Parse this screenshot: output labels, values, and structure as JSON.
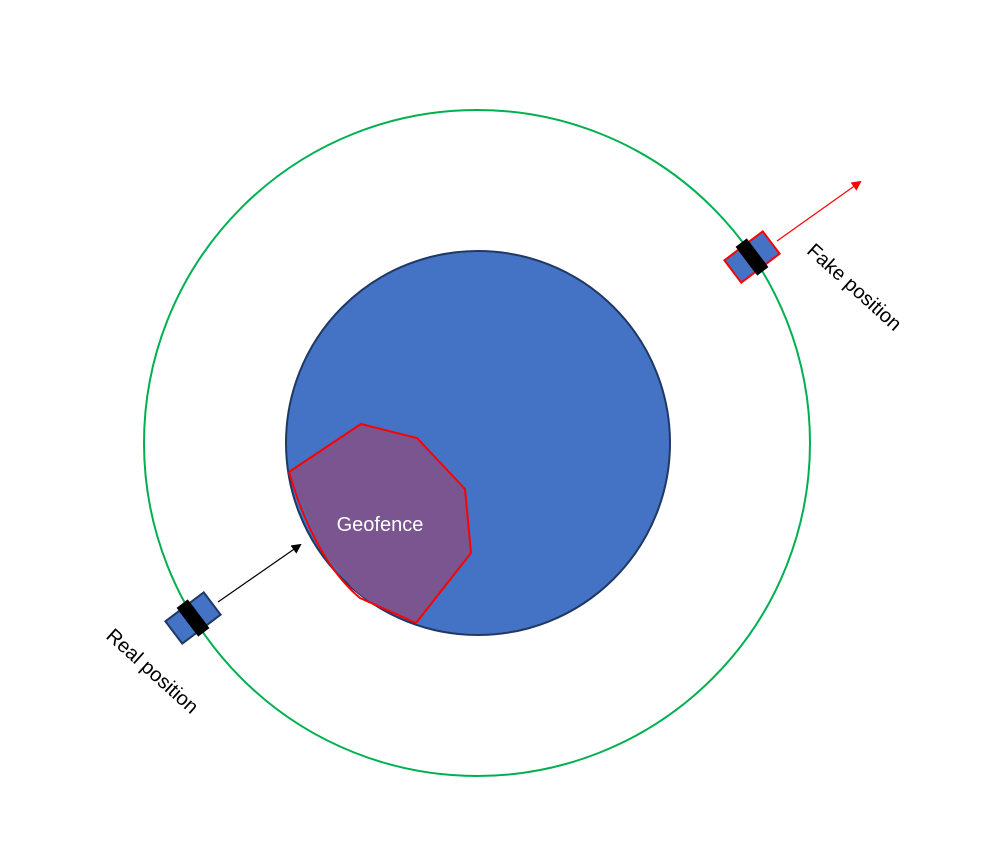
{
  "labels": {
    "geofence": "Geofence",
    "real_position": "Real position",
    "fake_position": "Fake position"
  },
  "colors": {
    "orbit": "#00b050",
    "earth_fill": "#4472c4",
    "earth_stroke": "#1f3864",
    "geofence_fill": "#7a5590",
    "geofence_stroke": "#ff0000",
    "satellite_body": "#4472c4",
    "satellite_core": "#000000",
    "real_arrow": "#000000",
    "fake_arrow": "#ff0000",
    "fake_outline": "#ff0000",
    "real_outline": "#1f3864",
    "text_dark": "#000000",
    "text_light": "#ffffff"
  }
}
